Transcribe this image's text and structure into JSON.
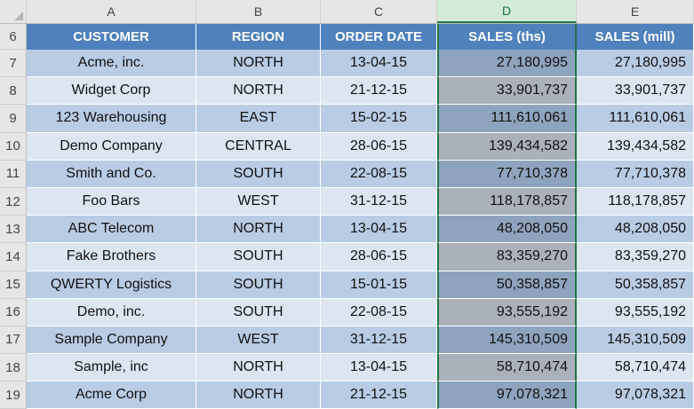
{
  "column_headers": [
    "A",
    "B",
    "C",
    "D",
    "E"
  ],
  "table": {
    "headers": [
      "CUSTOMER",
      "REGION",
      "ORDER DATE",
      "SALES (ths)",
      "SALES (mill)"
    ],
    "header_row_number": "6",
    "rows": [
      {
        "row": "7",
        "customer": "Acme, inc.",
        "region": "NORTH",
        "date": "13-04-15",
        "sales_ths": "27,180,995",
        "sales_mill": "27,180,995"
      },
      {
        "row": "8",
        "customer": "Widget Corp",
        "region": "NORTH",
        "date": "21-12-15",
        "sales_ths": "33,901,737",
        "sales_mill": "33,901,737"
      },
      {
        "row": "9",
        "customer": "123 Warehousing",
        "region": "EAST",
        "date": "15-02-15",
        "sales_ths": "111,610,061",
        "sales_mill": "111,610,061"
      },
      {
        "row": "10",
        "customer": "Demo Company",
        "region": "CENTRAL",
        "date": "28-06-15",
        "sales_ths": "139,434,582",
        "sales_mill": "139,434,582"
      },
      {
        "row": "11",
        "customer": "Smith and Co.",
        "region": "SOUTH",
        "date": "22-08-15",
        "sales_ths": "77,710,378",
        "sales_mill": "77,710,378"
      },
      {
        "row": "12",
        "customer": "Foo Bars",
        "region": "WEST",
        "date": "31-12-15",
        "sales_ths": "118,178,857",
        "sales_mill": "118,178,857"
      },
      {
        "row": "13",
        "customer": "ABC Telecom",
        "region": "NORTH",
        "date": "13-04-15",
        "sales_ths": "48,208,050",
        "sales_mill": "48,208,050"
      },
      {
        "row": "14",
        "customer": "Fake Brothers",
        "region": "SOUTH",
        "date": "28-06-15",
        "sales_ths": "83,359,270",
        "sales_mill": "83,359,270"
      },
      {
        "row": "15",
        "customer": "QWERTY Logistics",
        "region": "SOUTH",
        "date": "15-01-15",
        "sales_ths": "50,358,857",
        "sales_mill": "50,358,857"
      },
      {
        "row": "16",
        "customer": "Demo, inc.",
        "region": "SOUTH",
        "date": "22-08-15",
        "sales_ths": "93,555,192",
        "sales_mill": "93,555,192"
      },
      {
        "row": "17",
        "customer": "Sample Company",
        "region": "WEST",
        "date": "31-12-15",
        "sales_ths": "145,310,509",
        "sales_mill": "145,310,509"
      },
      {
        "row": "18",
        "customer": "Sample, inc",
        "region": "NORTH",
        "date": "13-04-15",
        "sales_ths": "58,710,474",
        "sales_mill": "58,710,474"
      },
      {
        "row": "19",
        "customer": "Acme Corp",
        "region": "NORTH",
        "date": "21-12-15",
        "sales_ths": "97,078,321",
        "sales_mill": "97,078,321"
      }
    ]
  },
  "selection": {
    "selected_column": "D"
  },
  "colors": {
    "header_fill": "#4f81bd",
    "band_dark": "#b8cce4",
    "band_light": "#dce6f1",
    "selection_accent": "#217346"
  }
}
